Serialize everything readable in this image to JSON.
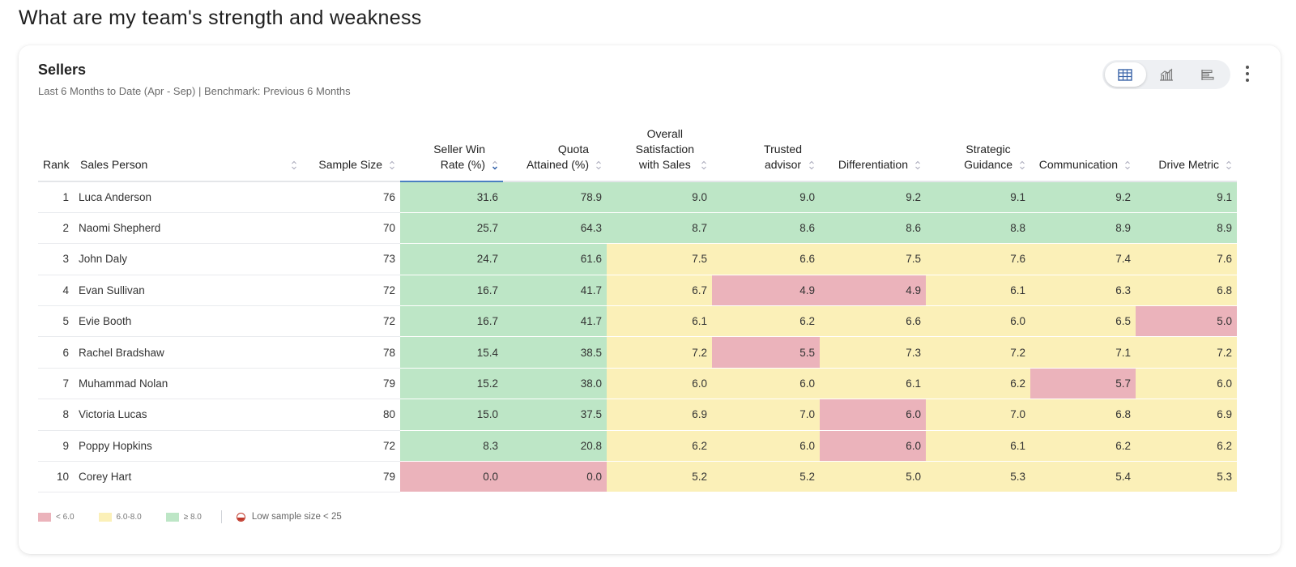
{
  "page": {
    "title": "What are my team's strength and weakness"
  },
  "card": {
    "title": "Sellers",
    "subtitle": "Last 6 Months to Date (Apr - Sep) | Benchmark: Previous 6 Months"
  },
  "view_toggle": {
    "options": [
      "table-view-icon",
      "chart-view-icon",
      "bar-view-icon"
    ],
    "active": "table-view-icon"
  },
  "colors": {
    "green": "#bde6c6",
    "yellow": "#fbf0b8",
    "red": "#ebb3bb",
    "sort_accent": "#4a7fc1"
  },
  "table": {
    "headers": {
      "rank": "Rank",
      "name": "Sales Person",
      "sample": "Sample Size",
      "win_rate": [
        "Seller Win",
        "Rate (%)"
      ],
      "quota": [
        "Quota",
        "Attained (%)"
      ],
      "satisfaction": [
        "Overall",
        "Satisfaction",
        "with Sales"
      ],
      "trusted": [
        "Trusted",
        "advisor"
      ],
      "differentiation": [
        "Differentiation"
      ],
      "strategic": [
        "Strategic",
        "Guidance"
      ],
      "communication": [
        "Communication"
      ],
      "drive": [
        "Drive Metric"
      ]
    },
    "rows": [
      {
        "rank": "1",
        "name": "Luca Anderson",
        "sample": "76",
        "win": "31.6",
        "quota": "78.9",
        "sat": "9.0",
        "trust": "9.0",
        "diff": "9.2",
        "strat": "9.1",
        "comm": "9.2",
        "drive": "9.1"
      },
      {
        "rank": "2",
        "name": "Naomi Shepherd",
        "sample": "70",
        "win": "25.7",
        "quota": "64.3",
        "sat": "8.7",
        "trust": "8.6",
        "diff": "8.6",
        "strat": "8.8",
        "comm": "8.9",
        "drive": "8.9"
      },
      {
        "rank": "3",
        "name": "John Daly",
        "sample": "73",
        "win": "24.7",
        "quota": "61.6",
        "sat": "7.5",
        "trust": "6.6",
        "diff": "7.5",
        "strat": "7.6",
        "comm": "7.4",
        "drive": "7.6"
      },
      {
        "rank": "4",
        "name": "Evan Sullivan",
        "sample": "72",
        "win": "16.7",
        "quota": "41.7",
        "sat": "6.7",
        "trust": "4.9",
        "diff": "4.9",
        "strat": "6.1",
        "comm": "6.3",
        "drive": "6.8"
      },
      {
        "rank": "5",
        "name": "Evie Booth",
        "sample": "72",
        "win": "16.7",
        "quota": "41.7",
        "sat": "6.1",
        "trust": "6.2",
        "diff": "6.6",
        "strat": "6.0",
        "comm": "6.5",
        "drive": "5.0"
      },
      {
        "rank": "6",
        "name": "Rachel Bradshaw",
        "sample": "78",
        "win": "15.4",
        "quota": "38.5",
        "sat": "7.2",
        "trust": "5.5",
        "diff": "7.3",
        "strat": "7.2",
        "comm": "7.1",
        "drive": "7.2"
      },
      {
        "rank": "7",
        "name": "Muhammad Nolan",
        "sample": "79",
        "win": "15.2",
        "quota": "38.0",
        "sat": "6.0",
        "trust": "6.0",
        "diff": "6.1",
        "strat": "6.2",
        "comm": "5.7",
        "drive": "6.0"
      },
      {
        "rank": "8",
        "name": "Victoria Lucas",
        "sample": "80",
        "win": "15.0",
        "quota": "37.5",
        "sat": "6.9",
        "trust": "7.0",
        "diff": "6.0",
        "strat": "7.0",
        "comm": "6.8",
        "drive": "6.9"
      },
      {
        "rank": "9",
        "name": "Poppy Hopkins",
        "sample": "72",
        "win": "8.3",
        "quota": "20.8",
        "sat": "6.2",
        "trust": "6.0",
        "diff": "6.0",
        "strat": "6.1",
        "comm": "6.2",
        "drive": "6.2"
      },
      {
        "rank": "10",
        "name": "Corey Hart",
        "sample": "79",
        "win": "0.0",
        "quota": "0.0",
        "sat": "5.2",
        "trust": "5.2",
        "diff": "5.0",
        "strat": "5.3",
        "comm": "5.4",
        "drive": "5.3"
      }
    ],
    "cell_colors": [
      [
        "g",
        "g",
        "g",
        "g",
        "g",
        "g",
        "g",
        "g"
      ],
      [
        "g",
        "g",
        "g",
        "g",
        "g",
        "g",
        "g",
        "g"
      ],
      [
        "g",
        "g",
        "y",
        "y",
        "y",
        "y",
        "y",
        "y"
      ],
      [
        "g",
        "g",
        "y",
        "r",
        "r",
        "y",
        "y",
        "y"
      ],
      [
        "g",
        "g",
        "y",
        "y",
        "y",
        "y",
        "y",
        "r"
      ],
      [
        "g",
        "g",
        "y",
        "r",
        "y",
        "y",
        "y",
        "y"
      ],
      [
        "g",
        "g",
        "y",
        "y",
        "y",
        "y",
        "r",
        "y"
      ],
      [
        "g",
        "g",
        "y",
        "y",
        "r",
        "y",
        "y",
        "y"
      ],
      [
        "g",
        "g",
        "y",
        "y",
        "r",
        "y",
        "y",
        "y"
      ],
      [
        "r",
        "r",
        "y",
        "y",
        "y",
        "y",
        "y",
        "y"
      ]
    ],
    "sorted_column": "win_rate",
    "sort_direction": "descending"
  },
  "legend": {
    "low": "< 6.0",
    "mid": "6.0-8.0",
    "high": "≥ 8.0",
    "low_sample": "Low sample size < 25"
  }
}
